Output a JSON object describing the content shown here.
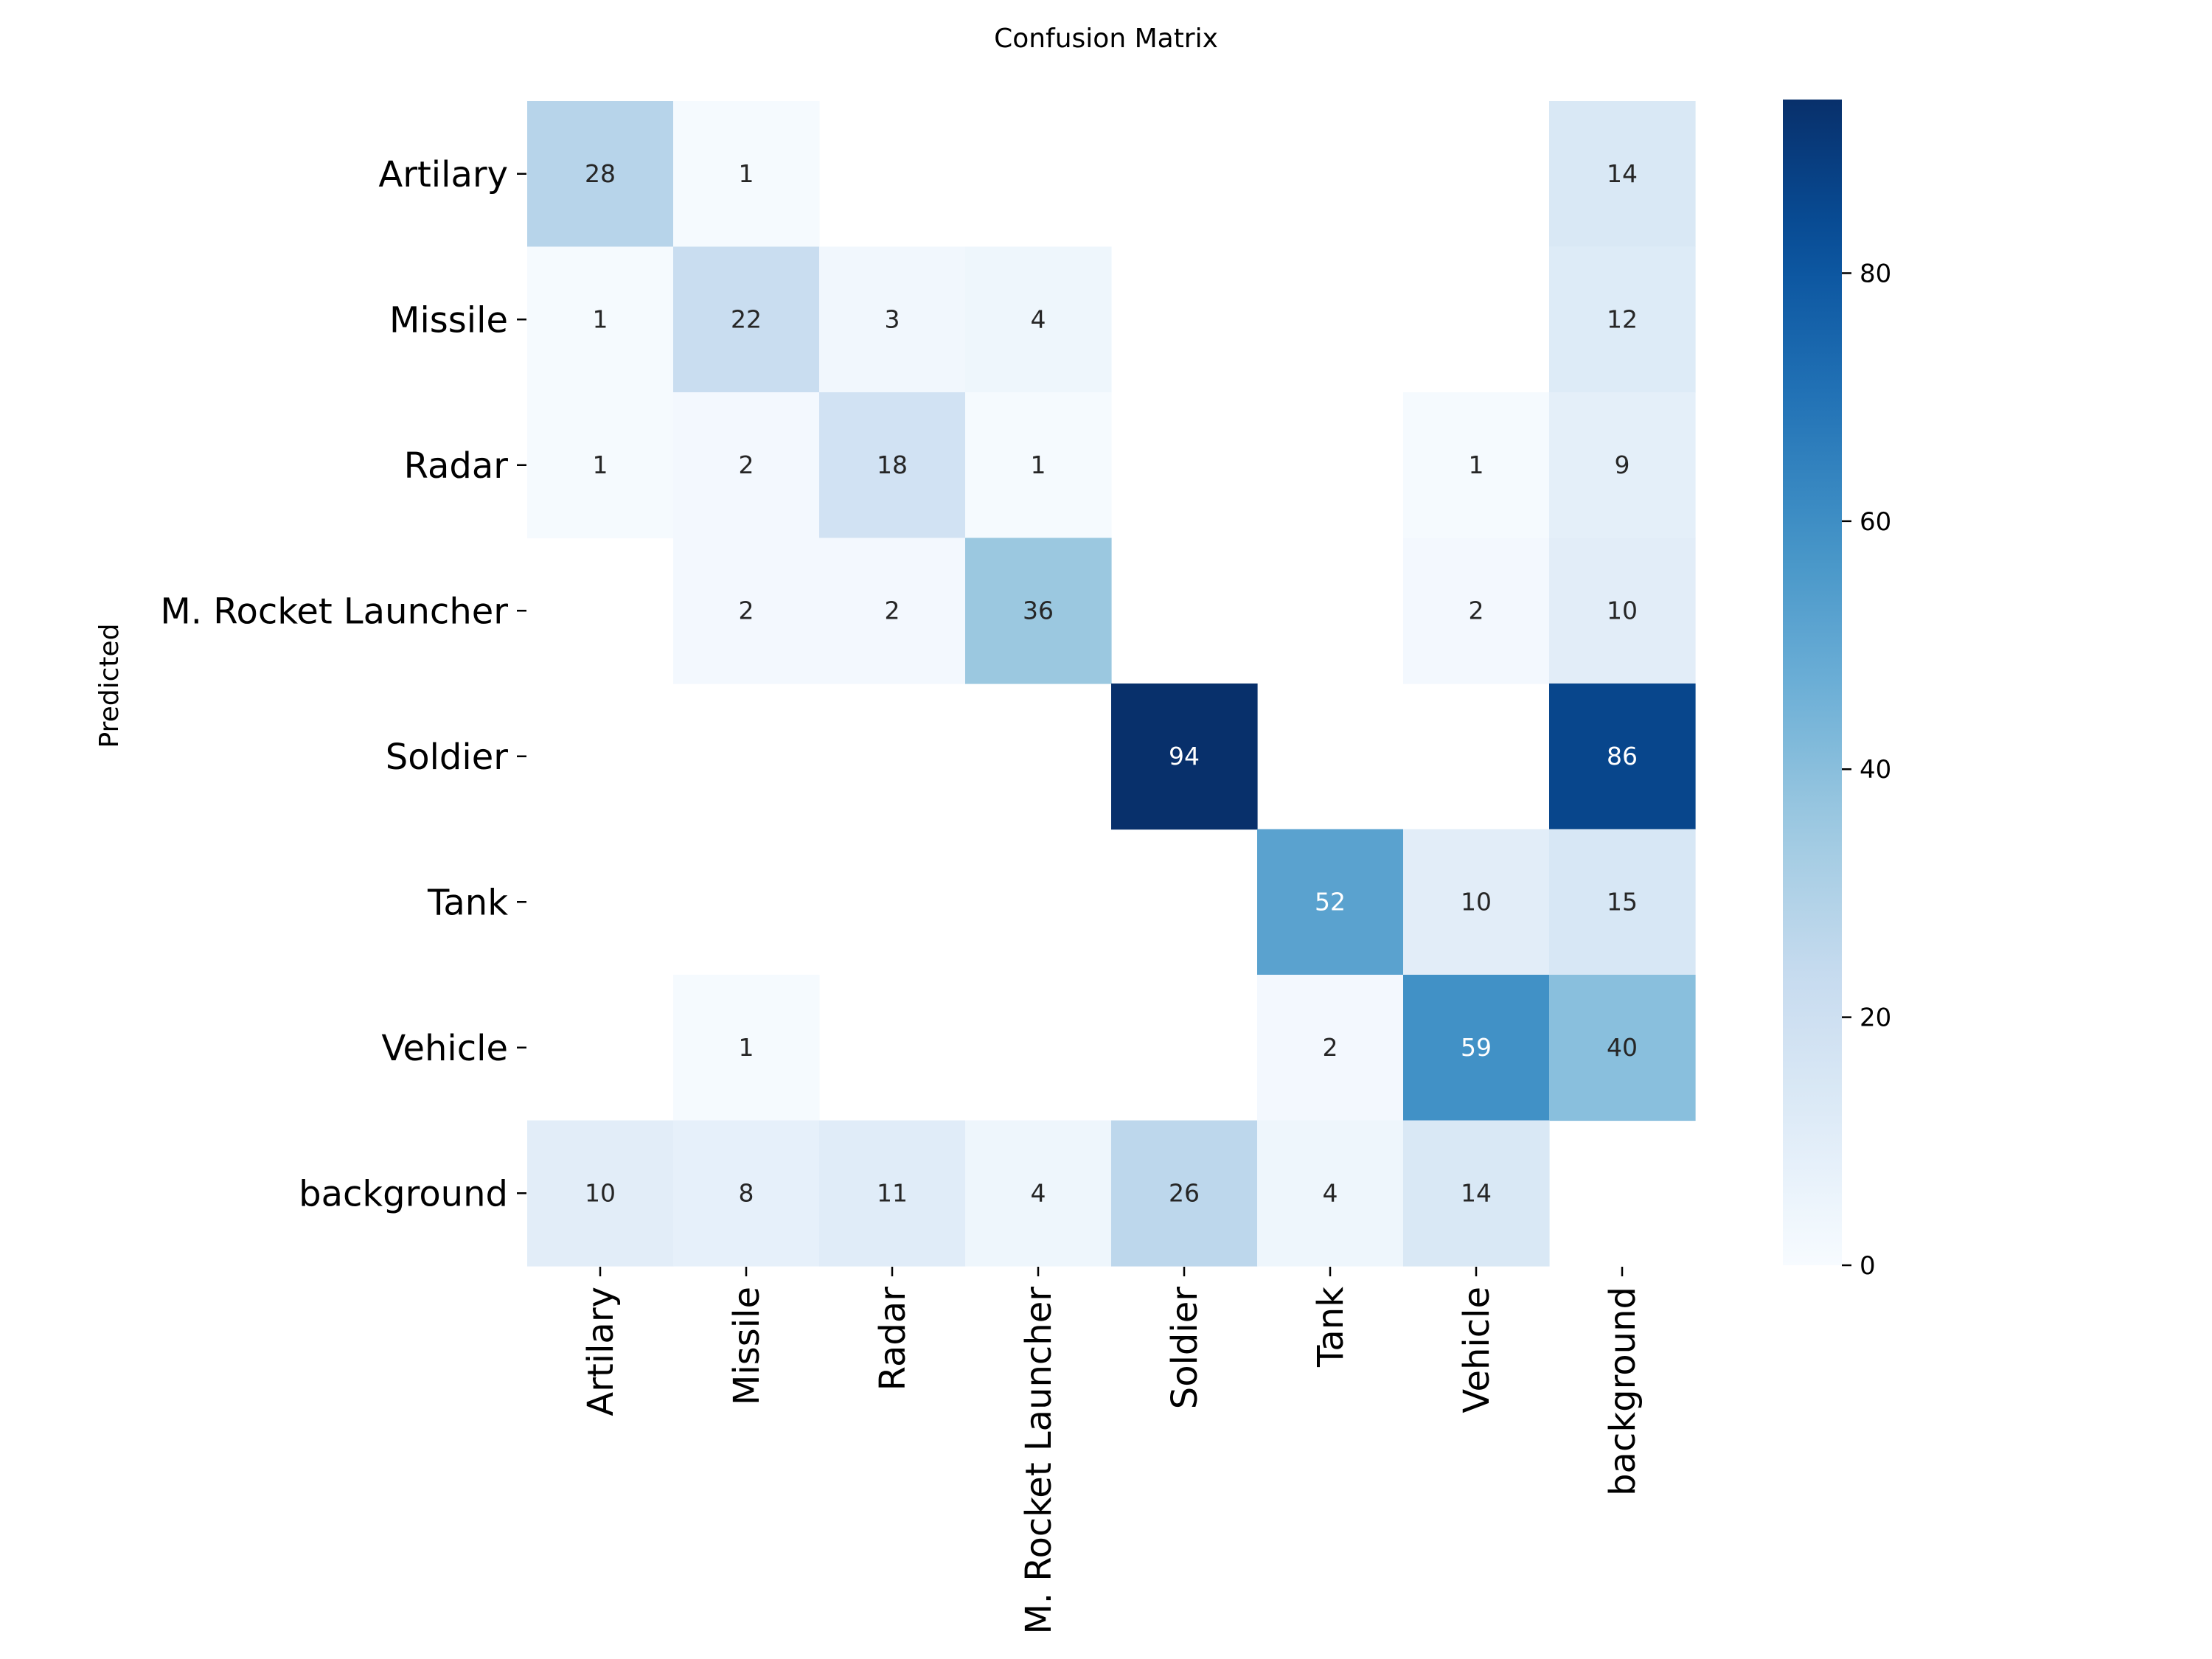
{
  "chart_data": {
    "type": "heatmap",
    "title": "Confusion Matrix",
    "ylabel": "Predicted",
    "xlabel": "",
    "x_categories": [
      "Artilary",
      "Missile",
      "Radar",
      "M. Rocket Launcher",
      "Soldier",
      "Tank",
      "Vehicle",
      "background"
    ],
    "y_categories": [
      "Artilary",
      "Missile",
      "Radar",
      "M. Rocket Launcher",
      "Soldier",
      "Tank",
      "Vehicle",
      "background"
    ],
    "values": [
      [
        28,
        1,
        null,
        null,
        null,
        null,
        null,
        14
      ],
      [
        1,
        22,
        3,
        4,
        null,
        null,
        null,
        12
      ],
      [
        1,
        2,
        18,
        1,
        null,
        null,
        1,
        9
      ],
      [
        null,
        2,
        2,
        36,
        null,
        null,
        2,
        10
      ],
      [
        null,
        null,
        null,
        null,
        94,
        null,
        null,
        86
      ],
      [
        null,
        null,
        null,
        null,
        null,
        52,
        10,
        15
      ],
      [
        null,
        1,
        null,
        null,
        null,
        2,
        59,
        40
      ],
      [
        10,
        8,
        11,
        4,
        26,
        4,
        14,
        null
      ]
    ],
    "colorbar": {
      "min": 0,
      "max": 94,
      "ticks": [
        0,
        20,
        40,
        60,
        80
      ]
    },
    "colormap": "Blues",
    "grid": false
  }
}
